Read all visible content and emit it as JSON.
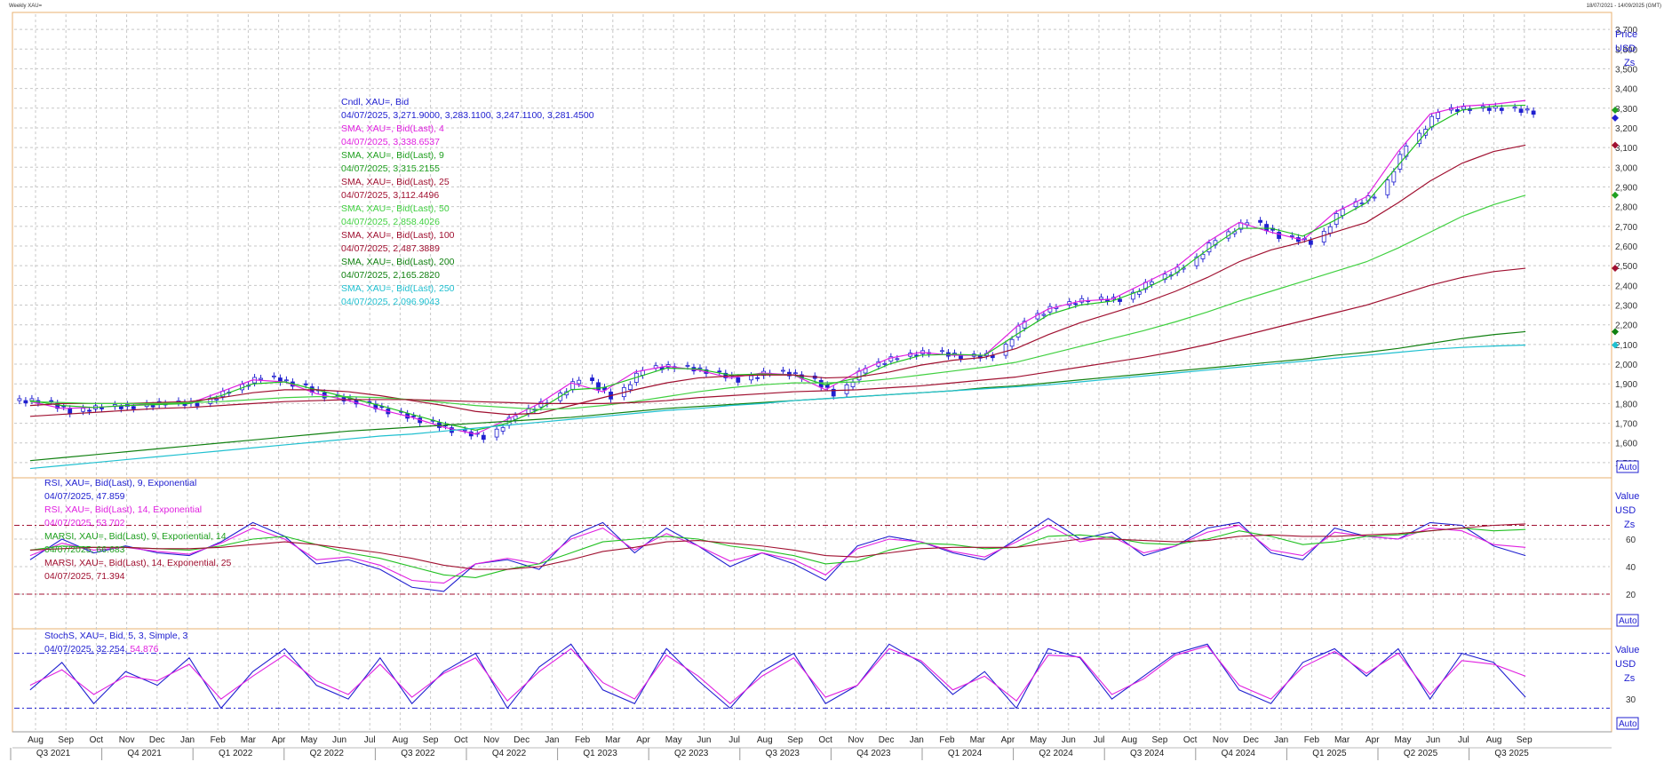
{
  "window": {
    "title": "Weekly XAU=",
    "range": "18/07/2021 - 14/09/2025 (GMT)"
  },
  "colors": {
    "candle_up": "#ffffff",
    "candle_down": "#2020d0",
    "sma4": "#e020e0",
    "sma9": "#20c020",
    "sma25": "#a01030",
    "sma50": "#40d040",
    "sma100": "#a01030",
    "sma200": "#108010",
    "sma250": "#20c0d0",
    "rsi9": "#2020d0",
    "rsi14": "#e020e0",
    "marsi9": "#20c020",
    "marsi14": "#a01030",
    "stoch_k": "#2020d0",
    "stoch_d": "#e020e0",
    "grid": "#c8c8c8",
    "panel_border": "#e8b070"
  },
  "price_panel": {
    "axis_title": "Price",
    "axis_unit": "USD",
    "auto_label": "Auto",
    "legend": [
      {
        "text": "Cndl, XAU=, Bid",
        "color": "#2020d0"
      },
      {
        "text": "04/07/2025, 3,271.9000, 3,283.1100, 3,247.1100, 3,281.4500",
        "color": "#2020d0"
      },
      {
        "text": "SMA, XAU=, Bid(Last),  4",
        "color": "#e020e0"
      },
      {
        "text": "04/07/2025, 3,338.6537",
        "color": "#e020e0"
      },
      {
        "text": "SMA, XAU=, Bid(Last),  9",
        "color": "#20a020"
      },
      {
        "text": "04/07/2025, 3,315.2155",
        "color": "#20a020"
      },
      {
        "text": "SMA, XAU=, Bid(Last),  25",
        "color": "#a01030"
      },
      {
        "text": "04/07/2025, 3,112.4496",
        "color": "#a01030"
      },
      {
        "text": "SMA, XAU=, Bid(Last),  50",
        "color": "#40d040"
      },
      {
        "text": "04/07/2025, 2,858.4026",
        "color": "#40d040"
      },
      {
        "text": "SMA, XAU=, Bid(Last),  100",
        "color": "#a01030"
      },
      {
        "text": "04/07/2025, 2,487.3889",
        "color": "#a01030"
      },
      {
        "text": "SMA, XAU=, Bid(Last),  200",
        "color": "#108010"
      },
      {
        "text": "04/07/2025, 2,165.2820",
        "color": "#108010"
      },
      {
        "text": "SMA, XAU=, Bid(Last),  250",
        "color": "#20c0d0"
      },
      {
        "text": "04/07/2025, 2,096.9043",
        "color": "#20c0d0"
      }
    ],
    "marker_labels": [
      "Zs"
    ]
  },
  "rsi_panel": {
    "axis_title": "Value",
    "axis_unit": "USD",
    "auto_label": "Auto",
    "marker_labels": [
      "Zs"
    ],
    "legend": [
      {
        "text": "RSI, XAU=, Bid(Last),  9, Exponential",
        "color": "#2020d0"
      },
      {
        "text": "04/07/2025, 47.859",
        "color": "#2020d0"
      },
      {
        "text": "RSI, XAU=, Bid(Last),  14, Exponential",
        "color": "#e020e0"
      },
      {
        "text": "04/07/2025, 53.702",
        "color": "#e020e0"
      },
      {
        "text": "MARSI, XAU=, Bid(Last),  9, Exponential, 14",
        "color": "#20a020"
      },
      {
        "text": "04/07/2025, 66.683",
        "color": "#20a020"
      },
      {
        "text": "MARSI, XAU=, Bid(Last),  14, Exponential, 25",
        "color": "#a01030"
      },
      {
        "text": "04/07/2025, 71.394",
        "color": "#a01030"
      }
    ]
  },
  "stoch_panel": {
    "axis_title": "Value",
    "axis_unit": "USD",
    "auto_label": "Auto",
    "marker_labels": [
      "Zs"
    ],
    "legend_title": "StochS, XAU=, Bid,  5, 3, Simple, 3",
    "legend_date": "04/07/2025, 32.254,",
    "legend_d_value": "54.876"
  },
  "chart_data": {
    "type": "candlestick",
    "x_months": [
      "Aug",
      "Sep",
      "Oct",
      "Nov",
      "Dec",
      "Jan",
      "Feb",
      "Mar",
      "Apr",
      "May",
      "Jun",
      "Jul",
      "Aug",
      "Sep",
      "Oct",
      "Nov",
      "Dec",
      "Jan",
      "Feb",
      "Mar",
      "Apr",
      "May",
      "Jun",
      "Jul",
      "Aug",
      "Sep",
      "Oct",
      "Nov",
      "Dec",
      "Jan",
      "Feb",
      "Mar",
      "Apr",
      "May",
      "Jun",
      "Jul",
      "Aug",
      "Sep",
      "Oct",
      "Nov",
      "Dec",
      "Jan",
      "Feb",
      "Mar",
      "Apr",
      "May",
      "Jun",
      "Jul",
      "Aug",
      "Sep"
    ],
    "x_quarters": [
      "Q3 2021",
      "Q4 2021",
      "Q1 2022",
      "Q2 2022",
      "Q3 2022",
      "Q4 2022",
      "Q1 2023",
      "Q2 2023",
      "Q3 2023",
      "Q4 2023",
      "Q1 2024",
      "Q2 2024",
      "Q3 2024",
      "Q4 2024",
      "Q1 2025",
      "Q2 2025",
      "Q3 2025"
    ],
    "price": {
      "ylim": [
        1450,
        3750
      ],
      "ticks": [
        1500,
        1600,
        1700,
        1800,
        1900,
        2000,
        2100,
        2200,
        2300,
        2400,
        2500,
        2600,
        2700,
        2800,
        2900,
        3000,
        3100,
        3200,
        3300,
        3400,
        3500,
        3600,
        3700
      ],
      "monthly_close": [
        1815,
        1760,
        1785,
        1785,
        1805,
        1800,
        1870,
        1940,
        1900,
        1840,
        1810,
        1760,
        1715,
        1665,
        1630,
        1750,
        1815,
        1930,
        1835,
        1980,
        1990,
        1965,
        1920,
        1965,
        1940,
        1850,
        1990,
        2040,
        2065,
        2040,
        2045,
        2230,
        2300,
        2330,
        2330,
        2430,
        2500,
        2640,
        2730,
        2650,
        2620,
        2800,
        2860,
        3120,
        3290,
        3300,
        3300,
        3281
      ],
      "sma": {
        "sma4": [
          1810,
          1775,
          1780,
          1790,
          1800,
          1800,
          1860,
          1920,
          1910,
          1850,
          1815,
          1770,
          1730,
          1680,
          1645,
          1720,
          1800,
          1905,
          1860,
          1960,
          1990,
          1970,
          1930,
          1955,
          1945,
          1870,
          1960,
          2030,
          2060,
          2045,
          2045,
          2190,
          2280,
          2320,
          2330,
          2410,
          2490,
          2620,
          2720,
          2670,
          2630,
          2770,
          2850,
          3080,
          3270,
          3310,
          3320,
          3339
        ],
        "sma9": [
          1815,
          1790,
          1780,
          1790,
          1795,
          1800,
          1840,
          1900,
          1910,
          1870,
          1830,
          1790,
          1745,
          1700,
          1665,
          1700,
          1770,
          1870,
          1880,
          1930,
          1980,
          1975,
          1945,
          1950,
          1945,
          1895,
          1930,
          2000,
          2045,
          2050,
          2045,
          2150,
          2250,
          2300,
          2320,
          2380,
          2460,
          2580,
          2690,
          2690,
          2650,
          2730,
          2820,
          3010,
          3200,
          3290,
          3310,
          3315
        ],
        "sma25": [
          1790,
          1800,
          1800,
          1800,
          1805,
          1810,
          1830,
          1855,
          1870,
          1870,
          1860,
          1840,
          1815,
          1790,
          1760,
          1745,
          1750,
          1790,
          1830,
          1870,
          1905,
          1930,
          1940,
          1945,
          1945,
          1930,
          1935,
          1960,
          1995,
          2020,
          2035,
          2080,
          2150,
          2210,
          2260,
          2310,
          2370,
          2440,
          2520,
          2580,
          2620,
          2670,
          2720,
          2820,
          2930,
          3020,
          3080,
          3112
        ],
        "sma50": [
          1810,
          1805,
          1800,
          1800,
          1800,
          1805,
          1810,
          1820,
          1830,
          1835,
          1835,
          1830,
          1820,
          1805,
          1790,
          1780,
          1770,
          1775,
          1790,
          1810,
          1835,
          1860,
          1880,
          1895,
          1905,
          1905,
          1910,
          1925,
          1945,
          1965,
          1985,
          2010,
          2050,
          2090,
          2130,
          2170,
          2215,
          2265,
          2320,
          2370,
          2420,
          2470,
          2520,
          2590,
          2670,
          2750,
          2810,
          2858
        ],
        "sma100": [
          1735,
          1745,
          1755,
          1765,
          1775,
          1780,
          1790,
          1800,
          1810,
          1815,
          1820,
          1820,
          1820,
          1815,
          1810,
          1805,
          1800,
          1800,
          1800,
          1805,
          1815,
          1830,
          1840,
          1850,
          1860,
          1865,
          1870,
          1880,
          1890,
          1905,
          1920,
          1935,
          1960,
          1985,
          2010,
          2035,
          2065,
          2100,
          2140,
          2180,
          2220,
          2260,
          2300,
          2350,
          2400,
          2440,
          2470,
          2487
        ],
        "sma200": [
          1510,
          1525,
          1540,
          1555,
          1570,
          1585,
          1600,
          1615,
          1630,
          1645,
          1660,
          1670,
          1680,
          1690,
          1700,
          1710,
          1720,
          1730,
          1745,
          1760,
          1775,
          1785,
          1795,
          1805,
          1815,
          1825,
          1835,
          1845,
          1855,
          1865,
          1880,
          1890,
          1905,
          1920,
          1935,
          1950,
          1965,
          1980,
          1995,
          2010,
          2025,
          2045,
          2060,
          2080,
          2105,
          2130,
          2150,
          2165
        ],
        "sma250": [
          1470,
          1485,
          1500,
          1515,
          1530,
          1545,
          1560,
          1575,
          1590,
          1605,
          1620,
          1635,
          1645,
          1660,
          1675,
          1690,
          1705,
          1720,
          1735,
          1750,
          1765,
          1775,
          1790,
          1800,
          1815,
          1825,
          1835,
          1845,
          1855,
          1865,
          1875,
          1885,
          1895,
          1910,
          1925,
          1940,
          1955,
          1970,
          1985,
          2000,
          2015,
          2030,
          2045,
          2060,
          2075,
          2085,
          2092,
          2097
        ]
      }
    },
    "rsi": {
      "ylim": [
        0,
        100
      ],
      "ticks": [
        20,
        40,
        60
      ],
      "levels": [
        20,
        70
      ],
      "rsi9": [
        45,
        60,
        50,
        55,
        50,
        48,
        58,
        72,
        62,
        42,
        45,
        38,
        25,
        22,
        42,
        45,
        38,
        62,
        72,
        50,
        68,
        55,
        40,
        50,
        42,
        30,
        55,
        62,
        58,
        50,
        45,
        60,
        75,
        60,
        65,
        48,
        55,
        68,
        72,
        50,
        45,
        68,
        62,
        60,
        72,
        70,
        55,
        48
      ],
      "rsi14": [
        48,
        57,
        52,
        54,
        51,
        49,
        57,
        68,
        60,
        45,
        47,
        41,
        30,
        28,
        42,
        46,
        42,
        60,
        68,
        52,
        64,
        55,
        44,
        50,
        45,
        34,
        53,
        60,
        58,
        51,
        47,
        58,
        70,
        58,
        62,
        50,
        55,
        65,
        70,
        52,
        48,
        65,
        62,
        60,
        68,
        66,
        56,
        54
      ],
      "marsi9": [
        52,
        55,
        54,
        54,
        53,
        52,
        55,
        60,
        62,
        56,
        50,
        46,
        40,
        34,
        32,
        38,
        42,
        50,
        58,
        60,
        62,
        60,
        55,
        52,
        48,
        42,
        44,
        52,
        57,
        56,
        53,
        54,
        62,
        63,
        61,
        57,
        56,
        60,
        66,
        62,
        56,
        58,
        62,
        63,
        66,
        68,
        66,
        67
      ],
      "marsi14": [
        52,
        53,
        54,
        54,
        53,
        53,
        54,
        56,
        58,
        56,
        53,
        50,
        46,
        41,
        38,
        38,
        40,
        45,
        51,
        54,
        58,
        59,
        57,
        55,
        52,
        48,
        47,
        50,
        53,
        54,
        54,
        54,
        57,
        60,
        60,
        59,
        58,
        59,
        62,
        63,
        62,
        62,
        63,
        64,
        66,
        68,
        70,
        71
      ]
    },
    "stoch": {
      "ylim": [
        0,
        100
      ],
      "levels": [
        20,
        80
      ],
      "ticks": [
        30
      ],
      "k": [
        40,
        70,
        25,
        60,
        45,
        75,
        20,
        60,
        85,
        45,
        30,
        75,
        25,
        60,
        80,
        20,
        65,
        90,
        40,
        25,
        85,
        50,
        20,
        60,
        80,
        25,
        45,
        90,
        70,
        35,
        60,
        20,
        85,
        75,
        30,
        55,
        80,
        90,
        40,
        25,
        70,
        85,
        55,
        85,
        30,
        80,
        70,
        32
      ],
      "d": [
        45,
        62,
        35,
        55,
        50,
        68,
        30,
        55,
        78,
        50,
        35,
        68,
        32,
        58,
        75,
        28,
        60,
        85,
        48,
        30,
        78,
        55,
        25,
        55,
        75,
        32,
        45,
        85,
        72,
        40,
        55,
        28,
        78,
        76,
        35,
        52,
        78,
        88,
        45,
        30,
        65,
        82,
        58,
        80,
        35,
        72,
        68,
        55
      ]
    }
  }
}
